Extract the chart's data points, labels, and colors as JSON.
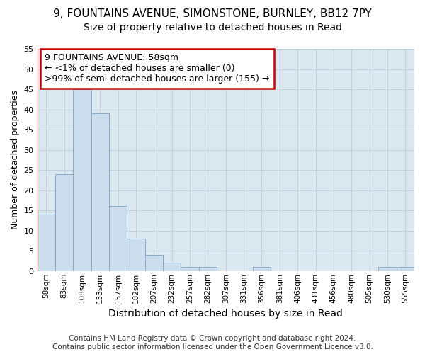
{
  "title1": "9, FOUNTAINS AVENUE, SIMONSTONE, BURNLEY, BB12 7PY",
  "title2": "Size of property relative to detached houses in Read",
  "xlabel": "Distribution of detached houses by size in Read",
  "ylabel": "Number of detached properties",
  "categories": [
    "58sqm",
    "83sqm",
    "108sqm",
    "133sqm",
    "157sqm",
    "182sqm",
    "207sqm",
    "232sqm",
    "257sqm",
    "282sqm",
    "307sqm",
    "331sqm",
    "356sqm",
    "381sqm",
    "406sqm",
    "431sqm",
    "456sqm",
    "480sqm",
    "505sqm",
    "530sqm",
    "555sqm"
  ],
  "values": [
    14,
    24,
    45,
    39,
    16,
    8,
    4,
    2,
    1,
    1,
    0,
    0,
    1,
    0,
    0,
    0,
    0,
    0,
    0,
    1,
    1
  ],
  "bar_color": "#ccdded",
  "bar_edge_color": "#88aac8",
  "annotation_box_color": "#ffffff",
  "annotation_box_edge": "#cc0000",
  "annotation_line1": "9 FOUNTAINS AVENUE: 58sqm",
  "annotation_line2": "← <1% of detached houses are smaller (0)",
  "annotation_line3": ">99% of semi-detached houses are larger (155) →",
  "highlight_bar_index": 0,
  "vertical_line_color": "#cc0000",
  "ylim": [
    0,
    55
  ],
  "yticks": [
    0,
    5,
    10,
    15,
    20,
    25,
    30,
    35,
    40,
    45,
    50,
    55
  ],
  "footer": "Contains HM Land Registry data © Crown copyright and database right 2024.\nContains public sector information licensed under the Open Government Licence v3.0.",
  "bg_color": "#dce8f0",
  "title1_fontsize": 11,
  "title2_fontsize": 10,
  "annotation_fontsize": 9,
  "footer_fontsize": 7.5,
  "xlabel_fontsize": 10,
  "ylabel_fontsize": 9
}
